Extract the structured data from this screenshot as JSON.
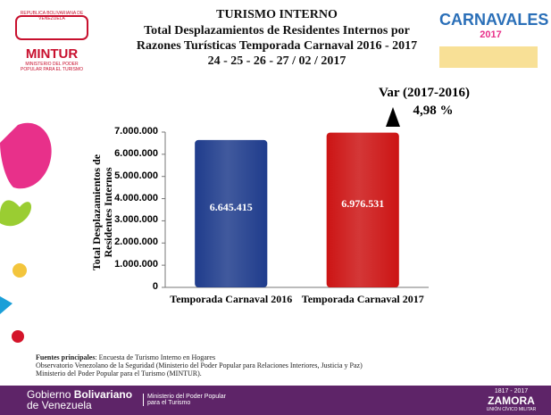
{
  "header": {
    "org_country": "REPUBLICA BOLIVARIANA DE VENEZUELA",
    "org_name": "MINTUR",
    "org_ministry": "MINISTERIO DEL PODER POPULAR PARA EL TURISMO",
    "event_logo": "CARNAVALES",
    "event_year": "2017"
  },
  "chart_data": {
    "type": "bar",
    "title": "TURISMO INTERNO",
    "subtitle": "Total  Desplazamientos de Residentes Internos por Razones Turísticas Temporada Carnaval 2016 -  2017",
    "date": "24 - 25 - 26 - 27 / 02 / 2017",
    "y_label": "Total Desplazamientos de Residentes Internos",
    "categories": [
      "Temporada Carnaval 2016",
      "Temporada Carnaval 2017"
    ],
    "values": [
      6645415,
      6976531
    ],
    "value_labels": [
      "6.645.415",
      "6.976.531"
    ],
    "colors": [
      "#1f3c8c",
      "#cc1414"
    ],
    "ylim": [
      0,
      7000000
    ],
    "yticks": [
      0,
      {
        "value": 1000000,
        "label": "1.000.000"
      },
      {
        "value": 2000000,
        "label": "2.000.000"
      },
      {
        "value": 3000000,
        "label": "3.000.000"
      },
      {
        "value": 4000000,
        "label": "4.000.000"
      },
      {
        "value": 5000000,
        "label": "5.000.000"
      },
      {
        "value": 6000000,
        "label": "6.000.000"
      },
      {
        "value": 7000000,
        "label": "7.000.000"
      }
    ],
    "grid": false,
    "annotation": {
      "label": "Var (2017-2016)",
      "value": "4,98 %"
    }
  },
  "sources": {
    "heading": "Fuentes principales",
    "line1": ": Encuesta de Turismo Interno en Hogares",
    "line2": "Observatorio Venezolano de la Seguridad  (Ministerio del Poder Popular para Relaciones  Interiores, Justicia y Paz)",
    "line3": "Ministerio del Poder Popular para el Turismo (MINTUR)."
  },
  "footer": {
    "gov1": "Gobierno ",
    "gov2": "Bolivariano",
    "gov3": "de Venezuela",
    "ministry1": "Ministerio del Poder Popular",
    "ministry2": "para el Turismo",
    "years": "1817 - 2017",
    "zamora": "ZAMORA",
    "union": "UNIÓN CÍVICO MILITAR"
  }
}
